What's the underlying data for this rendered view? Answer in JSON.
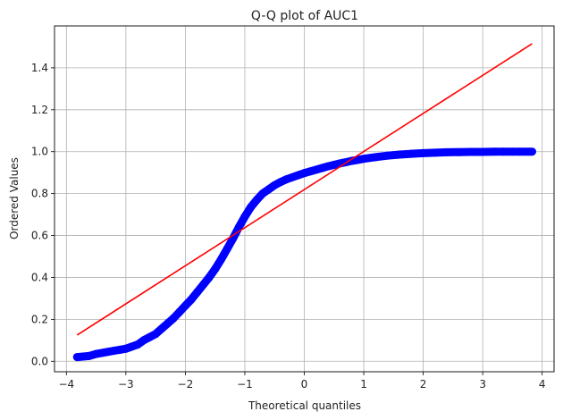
{
  "chart_data": {
    "type": "scatter",
    "title": "Q-Q plot of AUC1",
    "xlabel": "Theoretical quantiles",
    "ylabel": "Ordered Values",
    "xlim": [
      -4.2,
      4.2
    ],
    "ylim": [
      -0.05,
      1.6
    ],
    "grid": true,
    "x_ticks": [
      -4,
      -3,
      -2,
      -1,
      0,
      1,
      2,
      3,
      4
    ],
    "y_ticks": [
      0.0,
      0.2,
      0.4,
      0.6,
      0.8,
      1.0,
      1.2,
      1.4
    ],
    "x_tick_labels": [
      "−4",
      "−3",
      "−2",
      "−1",
      "0",
      "1",
      "2",
      "3",
      "4"
    ],
    "y_tick_labels": [
      "0.0",
      "0.2",
      "0.4",
      "0.6",
      "0.8",
      "1.0",
      "1.2",
      "1.4"
    ],
    "marker_color": "#0000ff",
    "line_color": "#ff0000",
    "fit_line": {
      "x": [
        -3.82,
        3.83
      ],
      "y": [
        0.125,
        1.515
      ]
    },
    "points": {
      "x": [
        -3.82,
        -3.62,
        -3.5,
        -3.4,
        -3.3,
        -3.2,
        -3.1,
        -3.0,
        -2.9,
        -2.8,
        -2.7,
        -2.6,
        -2.5,
        -2.4,
        -2.3,
        -2.2,
        -2.1,
        -2.0,
        -1.9,
        -1.8,
        -1.7,
        -1.6,
        -1.5,
        -1.4,
        -1.3,
        -1.2,
        -1.1,
        -1.0,
        -0.9,
        -0.8,
        -0.7,
        -0.6,
        -0.5,
        -0.4,
        -0.3,
        -0.2,
        -0.1,
        0.0,
        0.1,
        0.2,
        0.3,
        0.4,
        0.5,
        0.6,
        0.7,
        0.8,
        0.9,
        1.0,
        1.2,
        1.4,
        1.6,
        1.8,
        2.0,
        2.2,
        2.4,
        2.6,
        2.8,
        3.0,
        3.2,
        3.35,
        3.5,
        3.62,
        3.83
      ],
      "y": [
        0.02,
        0.025,
        0.035,
        0.04,
        0.045,
        0.05,
        0.055,
        0.06,
        0.07,
        0.08,
        0.1,
        0.115,
        0.13,
        0.155,
        0.18,
        0.205,
        0.235,
        0.265,
        0.295,
        0.33,
        0.365,
        0.4,
        0.44,
        0.485,
        0.535,
        0.585,
        0.64,
        0.69,
        0.735,
        0.77,
        0.8,
        0.82,
        0.84,
        0.855,
        0.868,
        0.878,
        0.888,
        0.898,
        0.906,
        0.914,
        0.922,
        0.93,
        0.937,
        0.944,
        0.95,
        0.956,
        0.961,
        0.966,
        0.974,
        0.981,
        0.986,
        0.99,
        0.993,
        0.995,
        0.997,
        0.998,
        0.999,
        0.999,
        1.0,
        1.0,
        1.0,
        1.0,
        1.0
      ]
    }
  }
}
